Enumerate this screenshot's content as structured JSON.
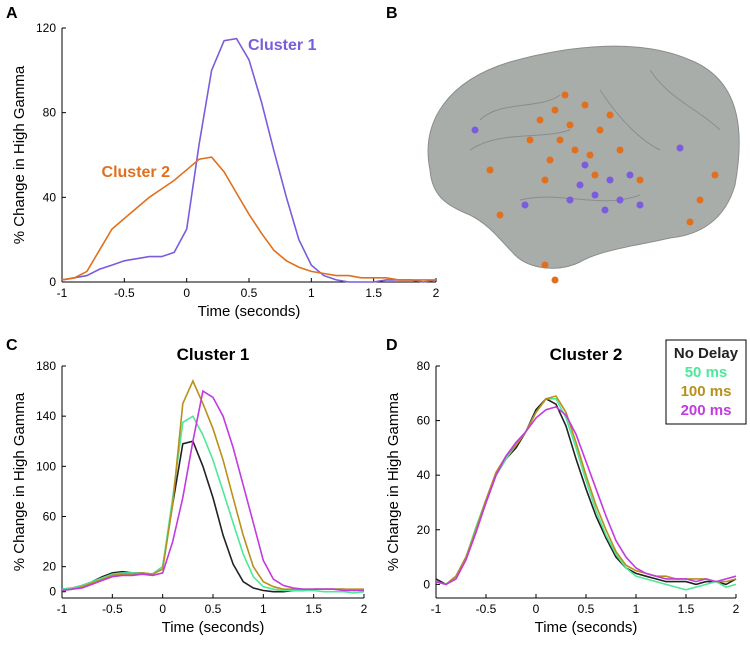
{
  "panel_b": {
    "label": "B"
  },
  "chart_data": [
    {
      "type": "line",
      "panel_label": "A",
      "xlabel": "Time (seconds)",
      "ylabel": "% Change in High Gamma",
      "xlim": [
        -1,
        2
      ],
      "xticks": [
        -1,
        -0.5,
        0,
        0.5,
        1,
        1.5,
        2
      ],
      "ylim": [
        0,
        120
      ],
      "yticks": [
        0,
        40,
        80,
        120
      ],
      "series_labels": true,
      "x": [
        -1,
        -0.9,
        -0.8,
        -0.7,
        -0.6,
        -0.5,
        -0.4,
        -0.3,
        -0.2,
        -0.1,
        0,
        0.1,
        0.2,
        0.3,
        0.4,
        0.5,
        0.6,
        0.7,
        0.8,
        0.9,
        1,
        1.1,
        1.2,
        1.3,
        1.4,
        1.5,
        1.6,
        1.7,
        1.8,
        1.9,
        2
      ],
      "series": [
        {
          "name": "Cluster 1",
          "color": "#7a5cdc",
          "values": [
            1,
            2,
            3,
            6,
            8,
            10,
            11,
            12,
            12,
            14,
            25,
            65,
            100,
            114,
            115,
            105,
            85,
            62,
            40,
            20,
            8,
            3,
            1,
            0,
            0,
            0,
            1,
            1,
            1,
            0,
            1
          ]
        },
        {
          "name": "Cluster 2",
          "color": "#e0701e",
          "values": [
            1,
            2,
            5,
            15,
            25,
            30,
            35,
            40,
            44,
            48,
            53,
            58,
            59,
            52,
            42,
            32,
            23,
            15,
            10,
            7,
            5,
            4,
            3,
            3,
            2,
            2,
            2,
            1,
            1,
            1,
            1
          ]
        }
      ]
    },
    {
      "type": "line",
      "panel_label": "C",
      "title": "Cluster 1",
      "xlabel": "Time (seconds)",
      "ylabel": "% Change in High Gamma",
      "xlim": [
        -1,
        2
      ],
      "xticks": [
        -1,
        -0.5,
        0,
        0.5,
        1,
        1.5,
        2
      ],
      "ylim": [
        -5,
        180
      ],
      "yticks": [
        0,
        20,
        60,
        100,
        140,
        180
      ],
      "x": [
        -1,
        -0.9,
        -0.8,
        -0.7,
        -0.6,
        -0.5,
        -0.4,
        -0.3,
        -0.2,
        -0.1,
        0,
        0.1,
        0.2,
        0.3,
        0.4,
        0.5,
        0.6,
        0.7,
        0.8,
        0.9,
        1,
        1.1,
        1.2,
        1.3,
        1.4,
        1.5,
        1.6,
        1.7,
        1.8,
        1.9,
        2
      ],
      "series": [
        {
          "color": "#222222",
          "values": [
            2,
            3,
            5,
            8,
            12,
            15,
            16,
            15,
            15,
            14,
            20,
            70,
            118,
            120,
            100,
            75,
            45,
            22,
            8,
            3,
            1,
            0,
            0,
            1,
            1,
            2,
            2,
            2,
            2,
            1,
            2
          ]
        },
        {
          "color": "#4de89a",
          "values": [
            2,
            3,
            5,
            8,
            11,
            14,
            15,
            15,
            15,
            14,
            20,
            75,
            135,
            140,
            125,
            105,
            80,
            55,
            30,
            12,
            4,
            2,
            1,
            1,
            1,
            1,
            0,
            0,
            0,
            -1,
            0
          ]
        },
        {
          "color": "#b8901a",
          "values": [
            1,
            2,
            4,
            7,
            10,
            13,
            14,
            14,
            15,
            14,
            18,
            70,
            150,
            168,
            150,
            130,
            105,
            75,
            45,
            20,
            8,
            4,
            2,
            2,
            2,
            2,
            2,
            2,
            2,
            2,
            2
          ]
        },
        {
          "color": "#c23ae0",
          "values": [
            1,
            2,
            3,
            6,
            9,
            12,
            13,
            13,
            14,
            13,
            15,
            40,
            75,
            120,
            160,
            155,
            140,
            115,
            85,
            55,
            25,
            10,
            5,
            3,
            2,
            2,
            2,
            2,
            1,
            1,
            1
          ]
        }
      ]
    },
    {
      "type": "line",
      "panel_label": "D",
      "title": "Cluster 2",
      "xlabel": "Time (seconds)",
      "ylabel": "% Change in High Gamma",
      "xlim": [
        -1,
        2
      ],
      "xticks": [
        -1,
        -0.5,
        0,
        0.5,
        1,
        1.5,
        2
      ],
      "ylim": [
        -5,
        80
      ],
      "yticks": [
        0,
        20,
        40,
        60,
        80
      ],
      "legend": "top-right",
      "x": [
        -1,
        -0.9,
        -0.8,
        -0.7,
        -0.6,
        -0.5,
        -0.4,
        -0.3,
        -0.2,
        -0.1,
        0,
        0.1,
        0.2,
        0.3,
        0.4,
        0.5,
        0.6,
        0.7,
        0.8,
        0.9,
        1,
        1.1,
        1.2,
        1.3,
        1.4,
        1.5,
        1.6,
        1.7,
        1.8,
        1.9,
        2
      ],
      "series": [
        {
          "name": "No Delay",
          "color": "#222222",
          "values": [
            2,
            0,
            3,
            10,
            20,
            30,
            40,
            46,
            50,
            56,
            64,
            68,
            66,
            58,
            46,
            35,
            25,
            17,
            10,
            6,
            4,
            3,
            2,
            1,
            1,
            1,
            0,
            1,
            1,
            0,
            2
          ]
        },
        {
          "name": "50 ms",
          "color": "#4de89a",
          "values": [
            1,
            0,
            2,
            10,
            21,
            31,
            40,
            46,
            51,
            56,
            63,
            68,
            68,
            61,
            50,
            38,
            27,
            18,
            11,
            6,
            3,
            2,
            1,
            0,
            -1,
            -2,
            -1,
            0,
            1,
            -1,
            0
          ]
        },
        {
          "name": "100 ms",
          "color": "#b8901a",
          "values": [
            1,
            0,
            3,
            10,
            20,
            31,
            41,
            47,
            51,
            56,
            63,
            68,
            69,
            63,
            52,
            40,
            29,
            20,
            12,
            7,
            5,
            4,
            3,
            3,
            2,
            2,
            2,
            2,
            1,
            1,
            2
          ]
        },
        {
          "name": "200 ms",
          "color": "#c23ae0",
          "values": [
            1,
            0,
            2,
            9,
            19,
            30,
            40,
            47,
            52,
            56,
            61,
            64,
            65,
            62,
            55,
            45,
            35,
            25,
            16,
            10,
            6,
            4,
            3,
            2,
            2,
            2,
            1,
            2,
            1,
            2,
            3
          ]
        }
      ]
    }
  ]
}
